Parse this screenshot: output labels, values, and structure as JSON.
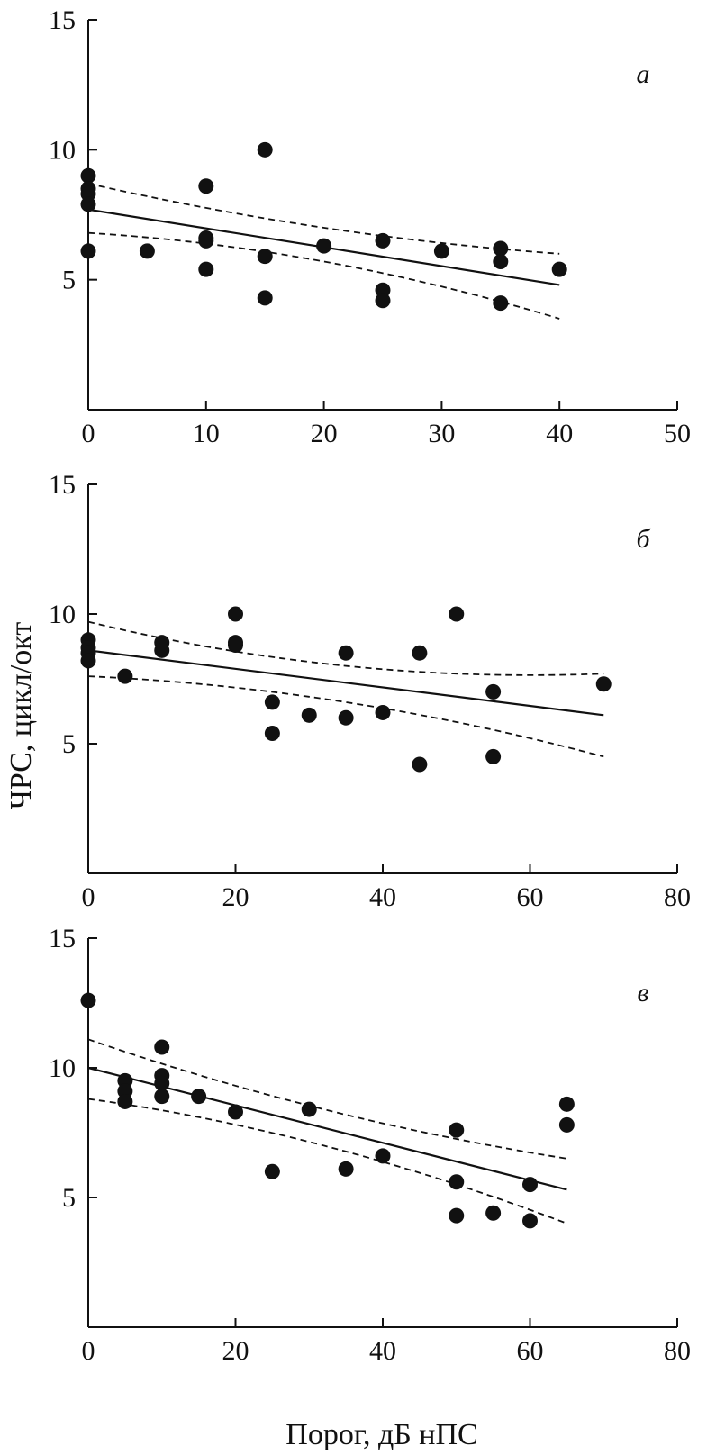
{
  "ylabel": "ЧРС, цикл/окт",
  "xlabel": "Порог, дБ нПС",
  "chart_data": [
    {
      "type": "scatter",
      "panel_label": "а",
      "xlim": [
        0,
        50
      ],
      "ylim": [
        0,
        15
      ],
      "xticks": [
        0,
        10,
        20,
        30,
        40,
        50
      ],
      "yticks": [
        5,
        10,
        15
      ],
      "x": [
        0,
        0,
        0,
        0,
        0,
        5,
        10,
        10,
        10,
        10,
        15,
        15,
        15,
        20,
        25,
        25,
        25,
        30,
        35,
        35,
        35,
        40
      ],
      "y": [
        9.0,
        8.5,
        8.3,
        7.9,
        6.1,
        6.1,
        8.6,
        6.6,
        6.5,
        5.4,
        10.0,
        5.9,
        4.3,
        6.3,
        6.5,
        4.6,
        4.2,
        6.1,
        6.2,
        5.7,
        4.1,
        5.4
      ],
      "fit": [
        [
          0,
          7.7
        ],
        [
          40,
          4.8
        ]
      ],
      "ci_upper": [
        [
          0,
          8.7
        ],
        [
          20,
          7.0
        ],
        [
          40,
          6.0
        ]
      ],
      "ci_lower": [
        [
          0,
          6.8
        ],
        [
          20,
          5.7
        ],
        [
          40,
          3.5
        ]
      ]
    },
    {
      "type": "scatter",
      "panel_label": "б",
      "xlim": [
        0,
        80
      ],
      "ylim": [
        0,
        15
      ],
      "xticks": [
        0,
        20,
        40,
        60,
        80
      ],
      "yticks": [
        5,
        10,
        15
      ],
      "x": [
        0,
        0,
        0,
        0,
        5,
        10,
        10,
        20,
        20,
        20,
        25,
        25,
        30,
        35,
        35,
        40,
        45,
        45,
        50,
        55,
        55,
        70
      ],
      "y": [
        9.0,
        8.7,
        8.5,
        8.2,
        7.6,
        8.9,
        8.6,
        10.0,
        8.9,
        8.8,
        6.6,
        5.4,
        6.1,
        8.5,
        6.0,
        6.2,
        8.5,
        4.2,
        10.0,
        7.0,
        4.5,
        7.3
      ],
      "fit": [
        [
          0,
          8.6
        ],
        [
          70,
          6.1
        ]
      ],
      "ci_upper": [
        [
          0,
          9.7
        ],
        [
          35,
          8.0
        ],
        [
          70,
          7.7
        ]
      ],
      "ci_lower": [
        [
          0,
          7.6
        ],
        [
          35,
          6.6
        ],
        [
          70,
          4.5
        ]
      ]
    },
    {
      "type": "scatter",
      "panel_label": "в",
      "xlim": [
        0,
        80
      ],
      "ylim": [
        0,
        15
      ],
      "xticks": [
        0,
        20,
        40,
        60,
        80
      ],
      "yticks": [
        5,
        10,
        15
      ],
      "x": [
        0,
        5,
        5,
        5,
        10,
        10,
        10,
        10,
        15,
        20,
        25,
        30,
        35,
        40,
        50,
        50,
        50,
        55,
        60,
        60,
        65,
        65
      ],
      "y": [
        12.6,
        9.5,
        9.1,
        8.7,
        10.8,
        9.7,
        9.4,
        8.9,
        8.9,
        8.3,
        6.0,
        8.4,
        6.1,
        6.6,
        7.6,
        5.6,
        4.3,
        4.4,
        5.5,
        4.1,
        8.6,
        7.8
      ],
      "fit": [
        [
          0,
          10.0
        ],
        [
          65,
          5.3
        ]
      ],
      "ci_upper": [
        [
          0,
          11.1
        ],
        [
          32,
          8.4
        ],
        [
          65,
          6.5
        ]
      ],
      "ci_lower": [
        [
          0,
          8.8
        ],
        [
          32,
          7.0
        ],
        [
          65,
          4.0
        ]
      ]
    }
  ]
}
